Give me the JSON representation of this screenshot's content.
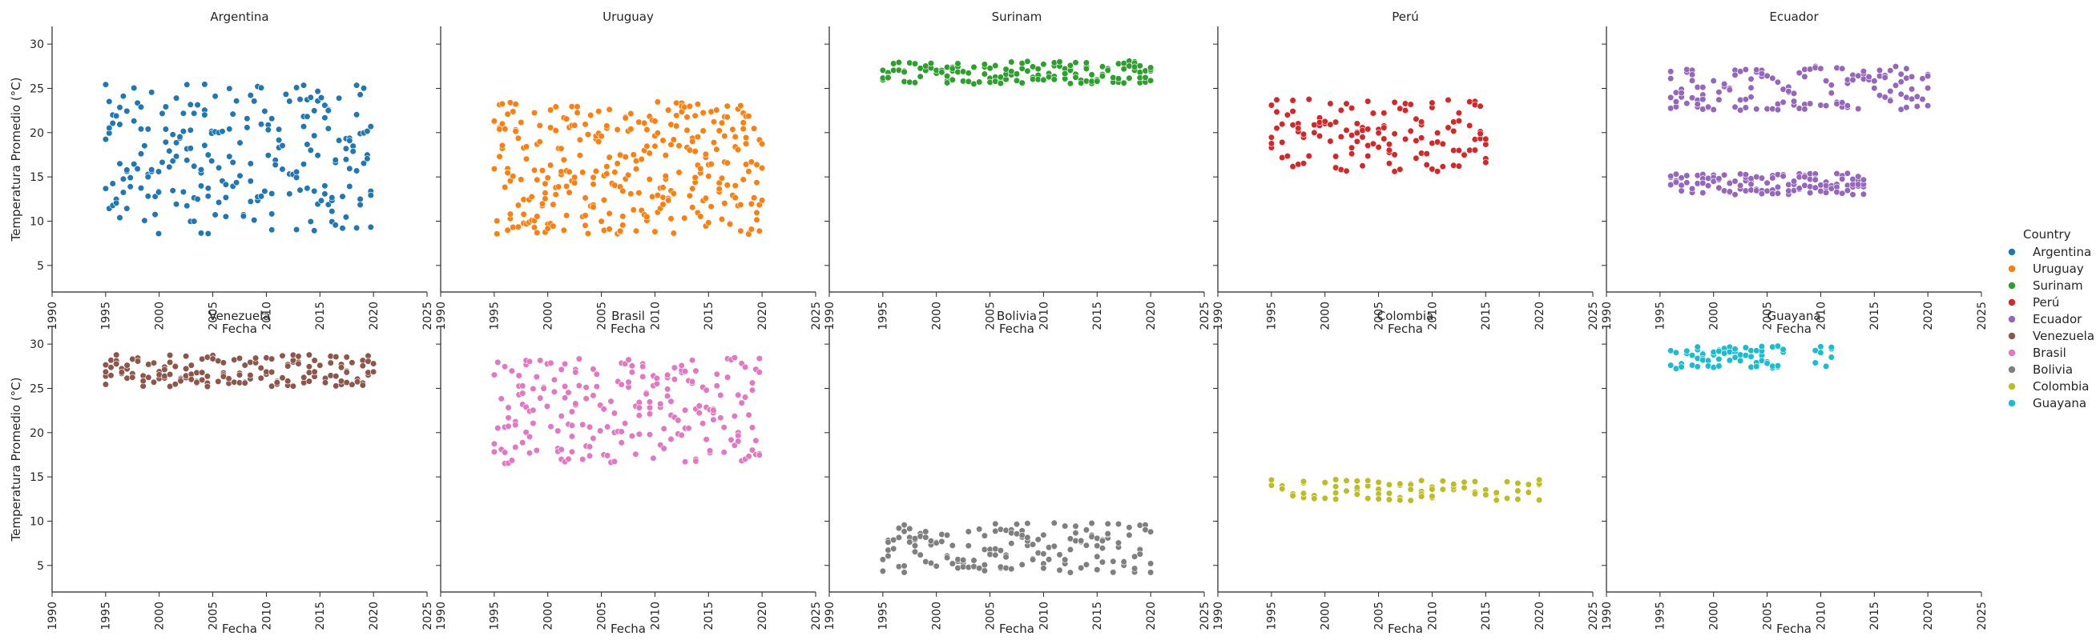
{
  "chart_data": {
    "type": "scatter",
    "title": "",
    "xlabel": "Fecha",
    "ylabel": "Temperatura Promedio (°C)",
    "xlim": [
      1990,
      2025
    ],
    "ylim": [
      2,
      32
    ],
    "x_ticks": [
      1990,
      1995,
      2000,
      2005,
      2010,
      2015,
      2020,
      2025
    ],
    "y_ticks": [
      5,
      10,
      15,
      20,
      25,
      30
    ],
    "grid": false,
    "legend": {
      "title": "Country",
      "placement": "right",
      "entries": [
        "Argentina",
        "Uruguay",
        "Surinam",
        "Perú",
        "Ecuador",
        "Venezuela",
        "Brasil",
        "Bolivia",
        "Colombia",
        "Guayana"
      ]
    },
    "series": [
      {
        "name": "Argentina",
        "color": "#1f77b4",
        "year_start": 1995,
        "year_end": 2020,
        "bands": [
          {
            "center": 17,
            "spread": 8.5
          }
        ],
        "step": 0.33
      },
      {
        "name": "Uruguay",
        "color": "#ff7f0e",
        "year_start": 1995,
        "year_end": 2020,
        "bands": [
          {
            "center": 16,
            "spread": 7.5
          }
        ],
        "step": 0.25
      },
      {
        "name": "Surinam",
        "color": "#2ca02c",
        "year_start": 1995,
        "year_end": 2020,
        "bands": [
          {
            "center": 26.8,
            "spread": 1.3
          }
        ],
        "step": 0.5
      },
      {
        "name": "Perú",
        "color": "#d62728",
        "year_start": 1995,
        "year_end": 2015,
        "bands": [
          {
            "center": 19.8,
            "spread": 4.2
          }
        ],
        "step": 0.5
      },
      {
        "name": "Ecuador",
        "color": "#9467bd",
        "year_start": 1996,
        "year_end": 2020,
        "bands": [
          {
            "center": 25,
            "spread": 2.5
          },
          {
            "center": 14.2,
            "spread": 1.2,
            "year_end": 2014
          }
        ],
        "step": 0.5
      },
      {
        "name": "Venezuela",
        "color": "#8c564b",
        "year_start": 1995,
        "year_end": 2020,
        "bands": [
          {
            "center": 27,
            "spread": 1.8
          }
        ],
        "step": 0.5
      },
      {
        "name": "Brasil",
        "color": "#e377c2",
        "year_start": 1995,
        "year_end": 2020,
        "bands": [
          {
            "center": 22.5,
            "spread": 6.0
          }
        ],
        "step": 0.33
      },
      {
        "name": "Bolivia",
        "color": "#7f7f7f",
        "year_start": 1995,
        "year_end": 2020,
        "bands": [
          {
            "center": 7.0,
            "spread": 2.8
          }
        ],
        "step": 0.5
      },
      {
        "name": "Colombia",
        "color": "#bcbd22",
        "year_start": 1995,
        "year_end": 2020,
        "bands": [
          {
            "center": 13.5,
            "spread": 1.2
          }
        ],
        "step": 1.0
      },
      {
        "name": "Guayana",
        "color": "#17becf",
        "year_start": 1996,
        "year_end": 2011,
        "bands": [
          {
            "center": 28.5,
            "spread": 1.3
          }
        ],
        "step": 0.5,
        "gap": [
          2006.5,
          2009.5
        ]
      }
    ]
  }
}
